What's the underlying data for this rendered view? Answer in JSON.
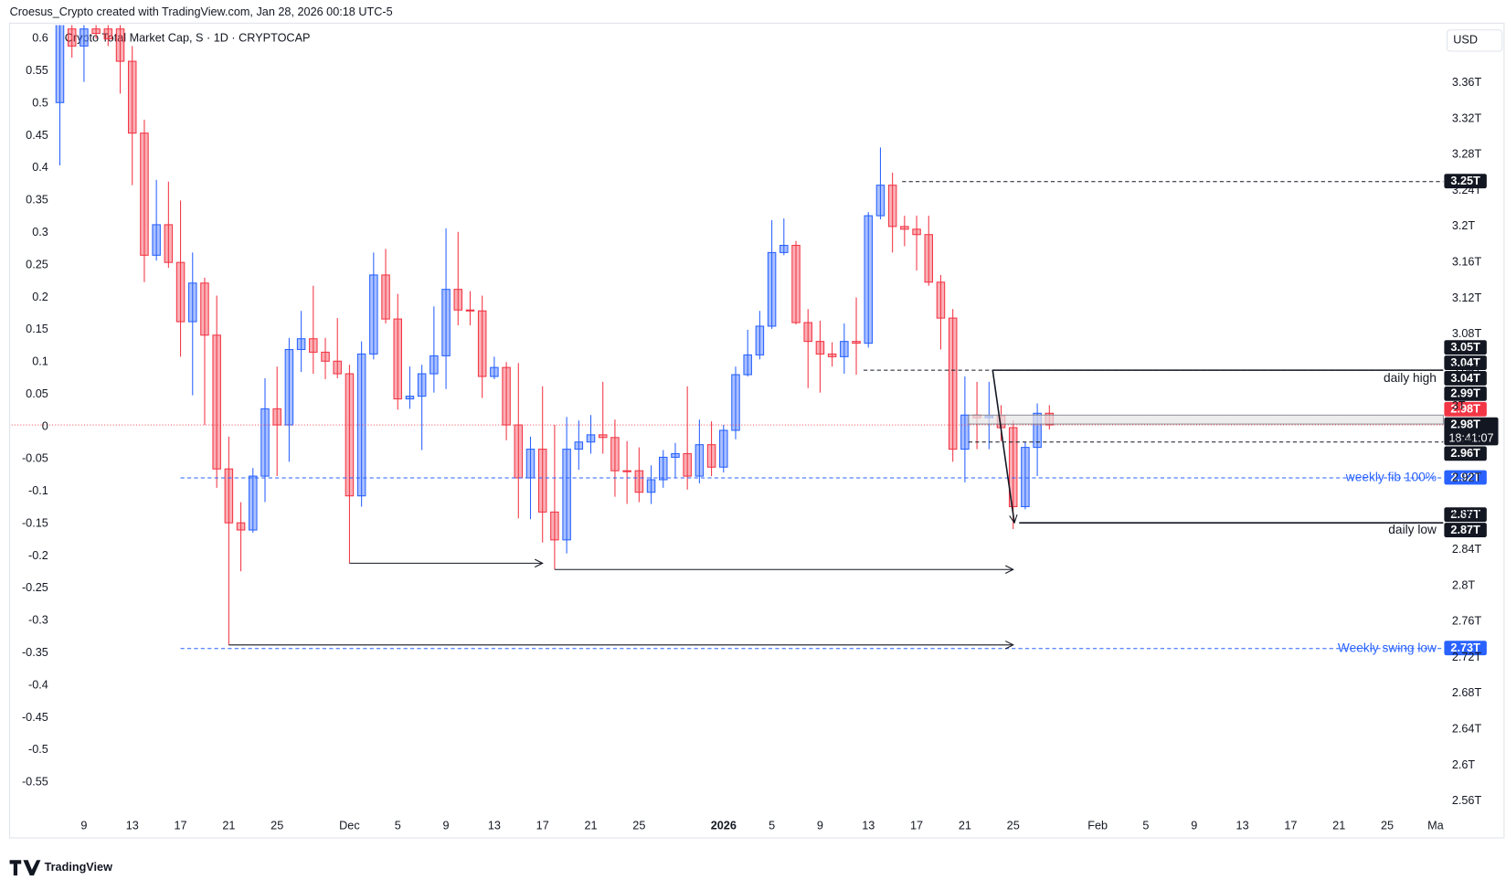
{
  "header": {
    "credit": "Croesus_Crypto created with TradingView.com, Jan 28, 2026 00:18 UTC-5",
    "logo": "TradingView"
  },
  "chart_data": {
    "type": "candlestick",
    "title": "Crypto Total Market Cap, S · 1D · CRYPTOCAP",
    "currency": "USD",
    "x": [
      0,
      1,
      2,
      3,
      4,
      5,
      6,
      7,
      8,
      9,
      10,
      11,
      12,
      13,
      14,
      15,
      16,
      17,
      18,
      19,
      20,
      21,
      22,
      23,
      24,
      25,
      26,
      27,
      28,
      29,
      30,
      31,
      32,
      33,
      34,
      35,
      36,
      37,
      38,
      39,
      40,
      41,
      42,
      43,
      44,
      45,
      46,
      47,
      48,
      49,
      50,
      51,
      52,
      53,
      54,
      55,
      56,
      57,
      58,
      59,
      60,
      61,
      62,
      63,
      64,
      65,
      66,
      67,
      68,
      69,
      70,
      71,
      72,
      73,
      74,
      75,
      76,
      77,
      78,
      79,
      80,
      81,
      82
    ],
    "open": [
      3.338,
      3.42,
      3.401,
      3.42,
      3.42,
      3.42,
      3.384,
      3.304,
      3.168,
      3.202,
      3.16,
      3.094,
      3.137,
      3.079,
      2.93,
      2.87,
      2.862,
      2.922,
      2.997,
      2.979,
      3.063,
      3.075,
      3.06,
      3.05,
      3.036,
      2.9,
      3.058,
      3.146,
      3.097,
      3.008,
      3.011,
      3.036,
      3.056,
      3.13,
      3.107,
      3.106,
      3.033,
      3.043,
      2.979,
      2.92,
      2.952,
      2.882,
      2.851,
      2.952,
      2.96,
      2.968,
      2.965,
      2.928,
      2.928,
      2.904,
      2.918,
      2.943,
      2.947,
      2.922,
      2.957,
      2.932,
      2.973,
      3.035,
      3.057,
      3.089,
      3.171,
      3.179,
      3.093,
      3.072,
      3.058,
      3.055,
      3.072,
      3.07,
      3.212,
      3.246,
      3.2,
      3.197,
      3.191,
      3.138,
      3.098,
      2.952,
      2.99,
      2.987,
      2.989,
      2.976,
      2.888,
      2.954,
      2.992
    ],
    "high": [
      3.431,
      3.431,
      3.431,
      3.431,
      3.431,
      3.431,
      3.401,
      3.319,
      3.252,
      3.25,
      3.229,
      3.171,
      3.143,
      3.123,
      2.966,
      2.893,
      2.931,
      3.031,
      3.044,
      3.076,
      3.106,
      3.134,
      3.076,
      3.098,
      3.046,
      3.072,
      3.171,
      3.175,
      3.125,
      3.044,
      3.046,
      3.111,
      3.198,
      3.194,
      3.128,
      3.123,
      3.055,
      3.049,
      3.048,
      2.966,
      3.022,
      2.979,
      2.988,
      2.984,
      2.99,
      3.027,
      2.985,
      2.961,
      2.954,
      2.934,
      2.951,
      2.959,
      3.022,
      2.985,
      2.983,
      2.979,
      3.044,
      3.085,
      3.106,
      3.207,
      3.209,
      3.184,
      3.108,
      3.095,
      3.071,
      3.092,
      3.121,
      3.216,
      3.288,
      3.26,
      3.212,
      3.212,
      3.212,
      3.146,
      3.108,
      3.033,
      3.027,
      3.027,
      3.001,
      2.984,
      2.96,
      3.003,
      3.001
    ],
    "low": [
      3.268,
      3.388,
      3.361,
      3.409,
      3.401,
      3.348,
      3.246,
      3.138,
      3.162,
      3.154,
      3.055,
      3.012,
      2.979,
      2.909,
      2.734,
      2.816,
      2.859,
      2.893,
      2.922,
      2.938,
      3.038,
      3.036,
      3.03,
      3.031,
      2.825,
      2.888,
      3.052,
      3.092,
      2.996,
      2.997,
      2.951,
      3.015,
      3.019,
      3.09,
      3.09,
      3.009,
      3.03,
      2.962,
      2.875,
      2.874,
      2.848,
      2.818,
      2.836,
      2.929,
      2.947,
      2.947,
      2.899,
      2.891,
      2.893,
      2.891,
      2.909,
      2.92,
      2.907,
      2.914,
      2.922,
      2.926,
      2.963,
      3.033,
      3.052,
      3.086,
      3.168,
      3.091,
      3.02,
      3.015,
      3.044,
      3.036,
      3.035,
      3.065,
      3.208,
      3.171,
      3.178,
      3.151,
      3.134,
      3.063,
      2.938,
      2.915,
      2.952,
      2.952,
      2.961,
      2.863,
      2.885,
      2.922,
      2.974
    ],
    "close": [
      3.426,
      3.401,
      3.42,
      3.415,
      3.409,
      3.384,
      3.304,
      3.168,
      3.202,
      3.16,
      3.094,
      3.137,
      3.079,
      2.93,
      2.87,
      2.862,
      2.922,
      2.997,
      2.979,
      3.063,
      3.075,
      3.06,
      3.05,
      3.036,
      2.9,
      3.058,
      3.146,
      3.097,
      3.008,
      3.011,
      3.036,
      3.056,
      3.13,
      3.107,
      3.106,
      3.033,
      3.043,
      2.979,
      2.92,
      2.952,
      2.882,
      2.851,
      2.952,
      2.96,
      2.968,
      2.965,
      2.928,
      2.927,
      2.904,
      2.918,
      2.943,
      2.947,
      2.922,
      2.957,
      2.932,
      2.973,
      3.035,
      3.057,
      3.089,
      3.171,
      3.179,
      3.093,
      3.072,
      3.058,
      3.055,
      3.072,
      3.07,
      3.212,
      3.246,
      3.2,
      3.197,
      3.191,
      3.138,
      3.098,
      2.952,
      2.99,
      2.987,
      2.989,
      2.976,
      2.888,
      2.954,
      2.992,
      2.979
    ],
    "up_color": "#2962ff",
    "down_color": "#f23645",
    "grid": false,
    "xlim": [
      -4,
      114.64
    ],
    "xticks": [
      {
        "value": 2,
        "label": "9"
      },
      {
        "value": 6,
        "label": "13"
      },
      {
        "value": 10,
        "label": "17"
      },
      {
        "value": 14,
        "label": "21"
      },
      {
        "value": 18,
        "label": "25"
      },
      {
        "value": 24,
        "label": "Dec"
      },
      {
        "value": 28,
        "label": "5"
      },
      {
        "value": 32,
        "label": "9"
      },
      {
        "value": 36,
        "label": "13"
      },
      {
        "value": 40,
        "label": "17"
      },
      {
        "value": 44,
        "label": "21"
      },
      {
        "value": 48,
        "label": "25"
      },
      {
        "value": 55,
        "label": "2026"
      },
      {
        "value": 59,
        "label": "5"
      },
      {
        "value": 63,
        "label": "9"
      },
      {
        "value": 67,
        "label": "13"
      },
      {
        "value": 71,
        "label": "17"
      },
      {
        "value": 75,
        "label": "21"
      },
      {
        "value": 79,
        "label": "25"
      },
      {
        "value": 86,
        "label": "Feb"
      },
      {
        "value": 90,
        "label": "5"
      },
      {
        "value": 94,
        "label": "9"
      },
      {
        "value": 98,
        "label": "13"
      },
      {
        "value": 102,
        "label": "17"
      },
      {
        "value": 106,
        "label": "21"
      },
      {
        "value": 110,
        "label": "25"
      },
      {
        "value": 114,
        "label": "Ma"
      }
    ],
    "ylim": [
      2.546,
      3.42
    ],
    "yticks": [
      {
        "value": 3.36,
        "label": "3.36T"
      },
      {
        "value": 3.32,
        "label": "3.32T"
      },
      {
        "value": 3.28,
        "label": "3.28T"
      },
      {
        "value": 3.24,
        "label": "3.24T"
      },
      {
        "value": 3.2,
        "label": "3.2T"
      },
      {
        "value": 3.16,
        "label": "3.16T"
      },
      {
        "value": 3.12,
        "label": "3.12T"
      },
      {
        "value": 3.08,
        "label": "3.08T"
      },
      {
        "value": 3.04,
        "label": "3.04T"
      },
      {
        "value": 3,
        "label": "3T"
      },
      {
        "value": 2.96,
        "label": "2.96T"
      },
      {
        "value": 2.92,
        "label": "2.92T"
      },
      {
        "value": 2.88,
        "label": "2.88T"
      },
      {
        "value": 2.84,
        "label": "2.84T"
      },
      {
        "value": 2.8,
        "label": "2.8T"
      },
      {
        "value": 2.76,
        "label": "2.76T"
      },
      {
        "value": 2.72,
        "label": "2.72T"
      },
      {
        "value": 2.68,
        "label": "2.68T"
      },
      {
        "value": 2.64,
        "label": "2.64T"
      },
      {
        "value": 2.6,
        "label": "2.6T"
      },
      {
        "value": 2.56,
        "label": "2.56T"
      }
    ],
    "y2lim": [
      -0.5985,
      0.615
    ],
    "y2ticks": [
      0.6,
      0.55,
      0.5,
      0.45,
      0.4,
      0.35,
      0.3,
      0.25,
      0.2,
      0.15,
      0.1,
      0.05,
      0,
      -0.05,
      -0.1,
      -0.15,
      -0.2,
      -0.25,
      -0.3,
      -0.35,
      -0.4,
      -0.45,
      -0.5,
      -0.55
    ],
    "price_labels": [
      {
        "value": 3.25,
        "label": "3.25T",
        "color": "#131722",
        "line": "dashed"
      },
      {
        "value": 3.05,
        "label": "3.05T",
        "color": "#131722"
      },
      {
        "value": 3.04,
        "label": "3.04T",
        "color": "#131722",
        "line": "dashed"
      },
      {
        "value": 3.04,
        "label": "3.04T",
        "color": "#131722",
        "line": "solid",
        "note": "daily high"
      },
      {
        "value": 2.99,
        "label": "2.99T",
        "color": "#131722"
      },
      {
        "value": 2.98,
        "label": "2.98T",
        "color": "#f23645"
      },
      {
        "value": 2.98,
        "label": "2.98T",
        "color": "#131722",
        "countdown": "18:41:07"
      },
      {
        "value": 2.96,
        "label": "2.96T",
        "color": "#131722",
        "line": "dashed"
      },
      {
        "value": 2.92,
        "label": "2.92T",
        "color": "#2962ff",
        "line": "dashed",
        "note": "weekly fib 100%"
      },
      {
        "value": 2.87,
        "label": "2.87T",
        "color": "#131722",
        "line": "solid"
      },
      {
        "value": 2.87,
        "label": "2.87T",
        "color": "#131722",
        "note": "daily low"
      },
      {
        "value": 2.73,
        "label": "2.73T",
        "color": "#2962ff",
        "line": "dashed",
        "note": "Weekly swing low"
      }
    ]
  }
}
